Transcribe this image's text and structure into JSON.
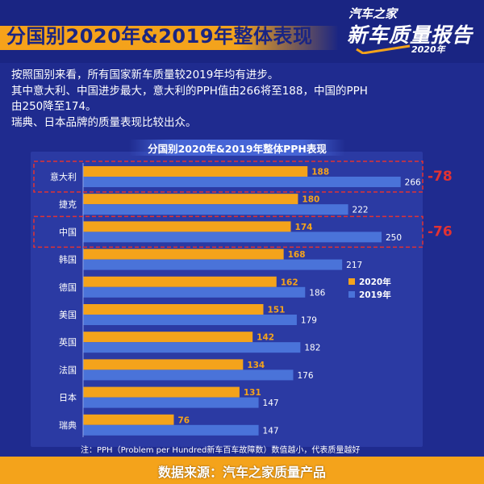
{
  "header": {
    "title": "分国别2020年&2019年整体表现",
    "logo": {
      "line1": "汽车之家",
      "line2": "新车质量报告",
      "line3": "2020年"
    }
  },
  "summary": [
    "按照国别来看，所有国家新车质量较2019年均有进步。",
    "其中意大利、中国进步最大，意大利的PPH值由266将至188，中国的PPH",
    "由250降至174。",
    "瑞典、日本品牌的质量表现比较出众。"
  ],
  "footnote": "注：PPH（Problem per Hundred新车百车故障数）数值越小，代表质量越好",
  "footer": {
    "source": "数据来源：汽车之家质量产品"
  },
  "colors": {
    "bar_2020": "#f4a31b",
    "bar_2019": "#4a73d9",
    "highlight": "#e23232",
    "background": "#1f2b8f"
  },
  "chart_data": {
    "type": "bar",
    "orientation": "horizontal",
    "title": "分国别2020年&2019年整体PPH表现",
    "categories": [
      "意大利",
      "捷克",
      "中国",
      "韩国",
      "德国",
      "美国",
      "英国",
      "法国",
      "日本",
      "瑞典"
    ],
    "series": [
      {
        "name": "2020年",
        "values": [
          188,
          180,
          174,
          168,
          162,
          151,
          142,
          134,
          131,
          76
        ]
      },
      {
        "name": "2019年",
        "values": [
          266,
          222,
          250,
          217,
          186,
          179,
          182,
          176,
          147,
          147
        ]
      }
    ],
    "xlim": [
      0,
      300
    ],
    "legend": "right",
    "grid": false,
    "annotations": [
      {
        "category": "意大利",
        "text": "-78"
      },
      {
        "category": "中国",
        "text": "-76"
      }
    ]
  }
}
